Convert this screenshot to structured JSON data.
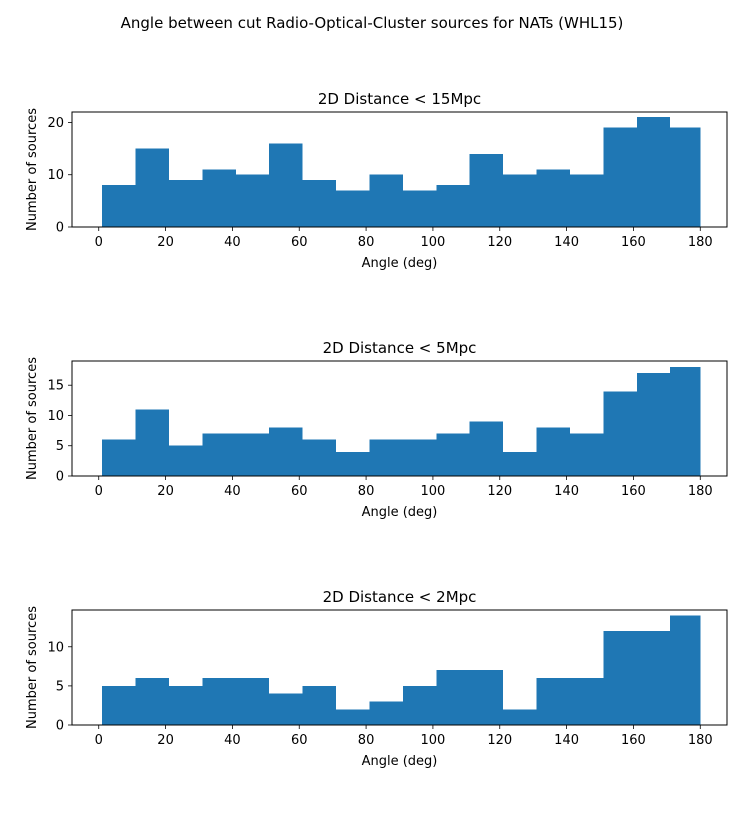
{
  "suptitle": "Angle between cut Radio-Optical-Cluster sources for NATs (WHL15)",
  "colors": {
    "bar": "#1f77b4",
    "axis": "#000000",
    "background": "#ffffff"
  },
  "chart_data": [
    {
      "type": "bar",
      "title": "2D Distance < 15Mpc",
      "xlabel": "Angle (deg)",
      "ylabel": "Number of sources",
      "bin_edges": [
        1,
        11,
        21,
        31,
        41,
        51,
        61,
        71,
        81,
        91,
        101,
        111,
        121,
        131,
        141,
        151,
        161,
        171,
        180
      ],
      "values": [
        8,
        15,
        9,
        11,
        10,
        16,
        9,
        7,
        10,
        7,
        8,
        14,
        10,
        11,
        10,
        19,
        21,
        19
      ],
      "xlim": [
        -8,
        188
      ],
      "ylim": [
        0,
        22
      ],
      "xticks": [
        0,
        20,
        40,
        60,
        80,
        100,
        120,
        140,
        160,
        180
      ],
      "yticks": [
        0,
        10,
        20
      ],
      "grid": false,
      "legend": "none"
    },
    {
      "type": "bar",
      "title": "2D Distance < 5Mpc",
      "xlabel": "Angle (deg)",
      "ylabel": "Number of sources",
      "bin_edges": [
        1,
        11,
        21,
        31,
        41,
        51,
        61,
        71,
        81,
        91,
        101,
        111,
        121,
        131,
        141,
        151,
        161,
        171,
        180
      ],
      "values": [
        6,
        11,
        5,
        7,
        7,
        8,
        6,
        4,
        6,
        6,
        7,
        9,
        4,
        8,
        7,
        14,
        17,
        18
      ],
      "xlim": [
        -8,
        188
      ],
      "ylim": [
        0,
        19
      ],
      "xticks": [
        0,
        20,
        40,
        60,
        80,
        100,
        120,
        140,
        160,
        180
      ],
      "yticks": [
        0,
        5,
        10,
        15
      ],
      "grid": false,
      "legend": "none"
    },
    {
      "type": "bar",
      "title": "2D Distance < 2Mpc",
      "xlabel": "Angle (deg)",
      "ylabel": "Number of sources",
      "bin_edges": [
        1,
        11,
        21,
        31,
        41,
        51,
        61,
        71,
        81,
        91,
        101,
        111,
        121,
        131,
        141,
        151,
        161,
        171,
        180
      ],
      "values": [
        5,
        6,
        5,
        6,
        6,
        4,
        5,
        2,
        3,
        5,
        7,
        7,
        2,
        6,
        6,
        12,
        12,
        14
      ],
      "xlim": [
        -8,
        188
      ],
      "ylim": [
        0,
        14.7
      ],
      "xticks": [
        0,
        20,
        40,
        60,
        80,
        100,
        120,
        140,
        160,
        180
      ],
      "yticks": [
        0,
        5,
        10
      ],
      "grid": false,
      "legend": "none"
    }
  ]
}
